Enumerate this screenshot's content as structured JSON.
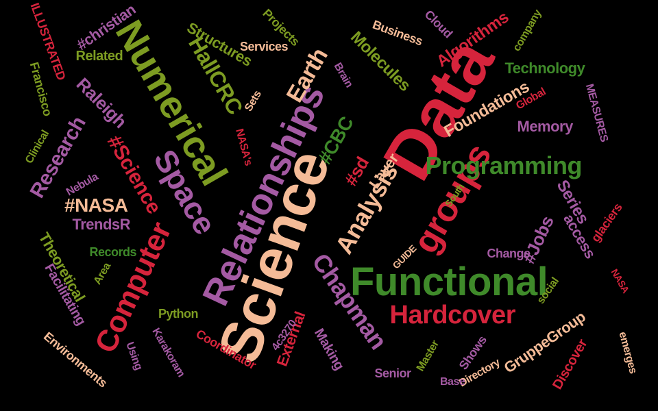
{
  "palette": {
    "red": "#d6243c",
    "green": "#3f8a2a",
    "olive": "#7d9c22",
    "purple": "#a45aa3",
    "peach": "#f4bb97",
    "magenta": "#c2185b"
  },
  "words": [
    {
      "text": "Science",
      "color": "peach"
    },
    {
      "text": "Data",
      "color": "red"
    },
    {
      "text": "Relationships",
      "color": "purple"
    },
    {
      "text": "Numerical",
      "color": "olive"
    },
    {
      "text": "Functional",
      "color": "green"
    },
    {
      "text": "Computer",
      "color": "red"
    },
    {
      "text": "Space",
      "color": "purple"
    },
    {
      "text": "groups",
      "color": "red"
    },
    {
      "text": "Programming",
      "color": "green"
    },
    {
      "text": "Analysis",
      "color": "peach"
    },
    {
      "text": "Hardcover",
      "color": "red"
    },
    {
      "text": "Chapman",
      "color": "purple"
    },
    {
      "text": "HallCRC",
      "color": "olive"
    },
    {
      "text": "Earth",
      "color": "peach"
    },
    {
      "text": "Research",
      "color": "purple"
    },
    {
      "text": "#Science",
      "color": "red"
    },
    {
      "text": "Structures",
      "color": "olive"
    },
    {
      "text": "Molecules",
      "color": "olive"
    },
    {
      "text": "Algorithms",
      "color": "red"
    },
    {
      "text": "Technology",
      "color": "green"
    },
    {
      "text": "Foundations",
      "color": "peach"
    },
    {
      "text": "Memory",
      "color": "purple"
    },
    {
      "text": "#NASA",
      "color": "peach"
    },
    {
      "text": "TrendsR",
      "color": "purple"
    },
    {
      "text": "Theoretical",
      "color": "olive"
    },
    {
      "text": "Raleigh",
      "color": "purple"
    },
    {
      "text": "#CBC",
      "color": "green"
    },
    {
      "text": "#sd",
      "color": "red"
    },
    {
      "text": "Layer",
      "color": "peach"
    },
    {
      "text": "Series",
      "color": "purple"
    },
    {
      "text": "#Jobs",
      "color": "purple"
    },
    {
      "text": "access",
      "color": "purple"
    },
    {
      "text": "GruppeGroup",
      "color": "peach"
    },
    {
      "text": "External",
      "color": "red"
    },
    {
      "text": "Making",
      "color": "purple"
    },
    {
      "text": "Senior",
      "color": "purple"
    },
    {
      "text": "Master",
      "color": "olive"
    },
    {
      "text": "Shows",
      "color": "purple"
    },
    {
      "text": "Directory",
      "color": "peach"
    },
    {
      "text": "Base",
      "color": "purple"
    },
    {
      "text": "Discover",
      "color": "red"
    },
    {
      "text": "emerges",
      "color": "peach"
    },
    {
      "text": "social",
      "color": "olive"
    },
    {
      "text": "glaciers",
      "color": "red"
    },
    {
      "text": "Change",
      "color": "purple"
    },
    {
      "text": "South",
      "color": "olive"
    },
    {
      "text": "Records",
      "color": "green"
    },
    {
      "text": "Facilitating",
      "color": "purple"
    },
    {
      "text": "Area",
      "color": "olive"
    },
    {
      "text": "Python",
      "color": "olive"
    },
    {
      "text": "Karakoram",
      "color": "purple"
    },
    {
      "text": "Coordinator",
      "color": "red"
    },
    {
      "text": "Environments",
      "color": "peach"
    },
    {
      "text": "Using",
      "color": "purple"
    },
    {
      "text": "#christian",
      "color": "purple"
    },
    {
      "text": "Related",
      "color": "olive"
    },
    {
      "text": "Projects",
      "color": "olive"
    },
    {
      "text": "Services",
      "color": "peach"
    },
    {
      "text": "Sets",
      "color": "peach"
    },
    {
      "text": "Business",
      "color": "peach"
    },
    {
      "text": "Cloud",
      "color": "purple"
    },
    {
      "text": "company",
      "color": "olive"
    },
    {
      "text": "Global",
      "color": "red"
    },
    {
      "text": "MEASURES",
      "color": "purple"
    },
    {
      "text": "NASA's",
      "color": "red"
    },
    {
      "text": "Nebula",
      "color": "purple"
    },
    {
      "text": "Clinical",
      "color": "olive"
    },
    {
      "text": "Francisco",
      "color": "olive"
    },
    {
      "text": "ILLUSTRATED",
      "color": "red"
    },
    {
      "text": "GUIDE",
      "color": "peach"
    },
    {
      "text": "4c3270",
      "color": "purple"
    },
    {
      "text": "Brain",
      "color": "purple"
    },
    {
      "text": "NASA",
      "color": "red"
    }
  ]
}
